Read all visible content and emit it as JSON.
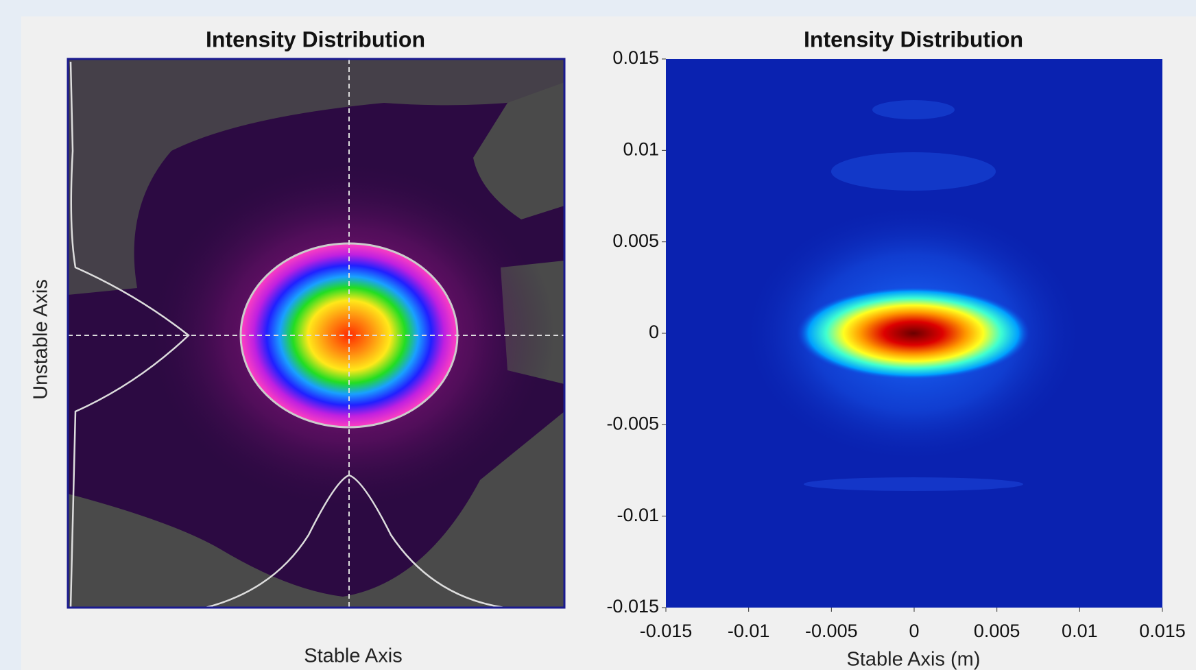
{
  "chart_data": [
    {
      "type": "heatmap",
      "title": "Intensity Distribution",
      "xlabel": "Stable Axis",
      "ylabel": "Unstable Axis"
    },
    {
      "type": "heatmap",
      "title": "Intensity Distribution",
      "xlabel": "Stable Axis (m)",
      "xlim": [
        -0.015,
        0.015
      ],
      "xticks": [
        -0.015,
        -0.01,
        -0.005,
        0,
        0.005,
        0.01,
        0.015
      ],
      "ylim": [
        -0.015,
        0.015
      ],
      "yticks": [
        -0.015,
        -0.01,
        -0.005,
        0,
        0.005,
        0.01,
        0.015
      ]
    }
  ]
}
